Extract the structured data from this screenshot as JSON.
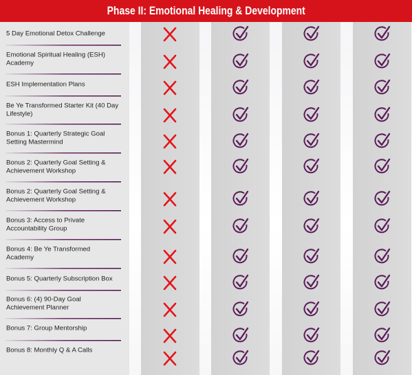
{
  "header": {
    "title": "Phase II: Emotional Healing & Development"
  },
  "rows": [
    "5 Day Emotional Detox Challenge",
    "Emotional Spiritual Healing (ESH) Academy",
    "ESH Implementation Plans",
    "Be Ye Transformed Starter Kit (40 Day Lifestyle)",
    "Bonus 1: Quarterly Strategic Goal Setting Mastermind",
    "Bonus 2: Quarterly Goal Setting & Achievement Workshop",
    "Bonus 2: Quarterly Goal Setting & Achievement Workshop",
    "Bonus 3: Access to Private Accountability Group",
    "Bonus 4: Be Ye Transformed Academy",
    "Bonus 5: Quarterly Subscription Box",
    "Bonus 6: (4) 90-Day Goal Achievement Planner",
    "Bonus 7: Group Mentorship",
    "Bonus 8: Monthly Q & A Calls"
  ]
}
